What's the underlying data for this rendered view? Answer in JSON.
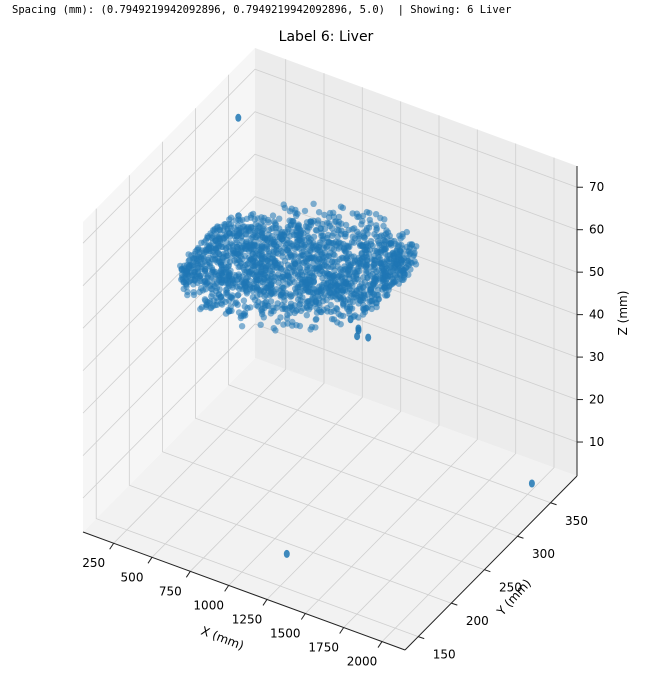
{
  "status": {
    "text": "Spacing (mm): (0.7949219942092896, 0.7949219942092896, 5.0)  | Showing: 6 Liver"
  },
  "chart_data": {
    "type": "scatter",
    "projection": "3d",
    "title": "Label 6: Liver",
    "xlabel": "X (mm)",
    "ylabel": "Y (mm)",
    "zlabel": "Z (mm)",
    "xticks": [
      250,
      500,
      750,
      1000,
      1250,
      1500,
      1750,
      2000
    ],
    "yticks": [
      150,
      200,
      250,
      300,
      350
    ],
    "zticks": [
      10,
      20,
      30,
      40,
      50,
      60,
      70
    ],
    "xlim": [
      50,
      2150
    ],
    "ylim": [
      130,
      390
    ],
    "zlim": [
      2,
      75
    ],
    "grid": true,
    "series_color": "#1f77b4",
    "main_structure": {
      "x_range": [
        200,
        1500
      ],
      "y_range": [
        210,
        330
      ],
      "z_range": [
        40,
        62
      ]
    },
    "small_clusters": [
      {
        "x": 200,
        "y": 330,
        "z": 70
      },
      {
        "x": 1450,
        "y": 210,
        "z": 58
      },
      {
        "x": 1480,
        "y": 215,
        "z": 55
      },
      {
        "x": 1500,
        "y": 225,
        "z": 52
      },
      {
        "x": 1350,
        "y": 245,
        "z": 49
      },
      {
        "x": 1320,
        "y": 250,
        "z": 46
      },
      {
        "x": 1250,
        "y": 160,
        "z": 8
      },
      {
        "x": 2050,
        "y": 345,
        "z": 6
      }
    ]
  }
}
